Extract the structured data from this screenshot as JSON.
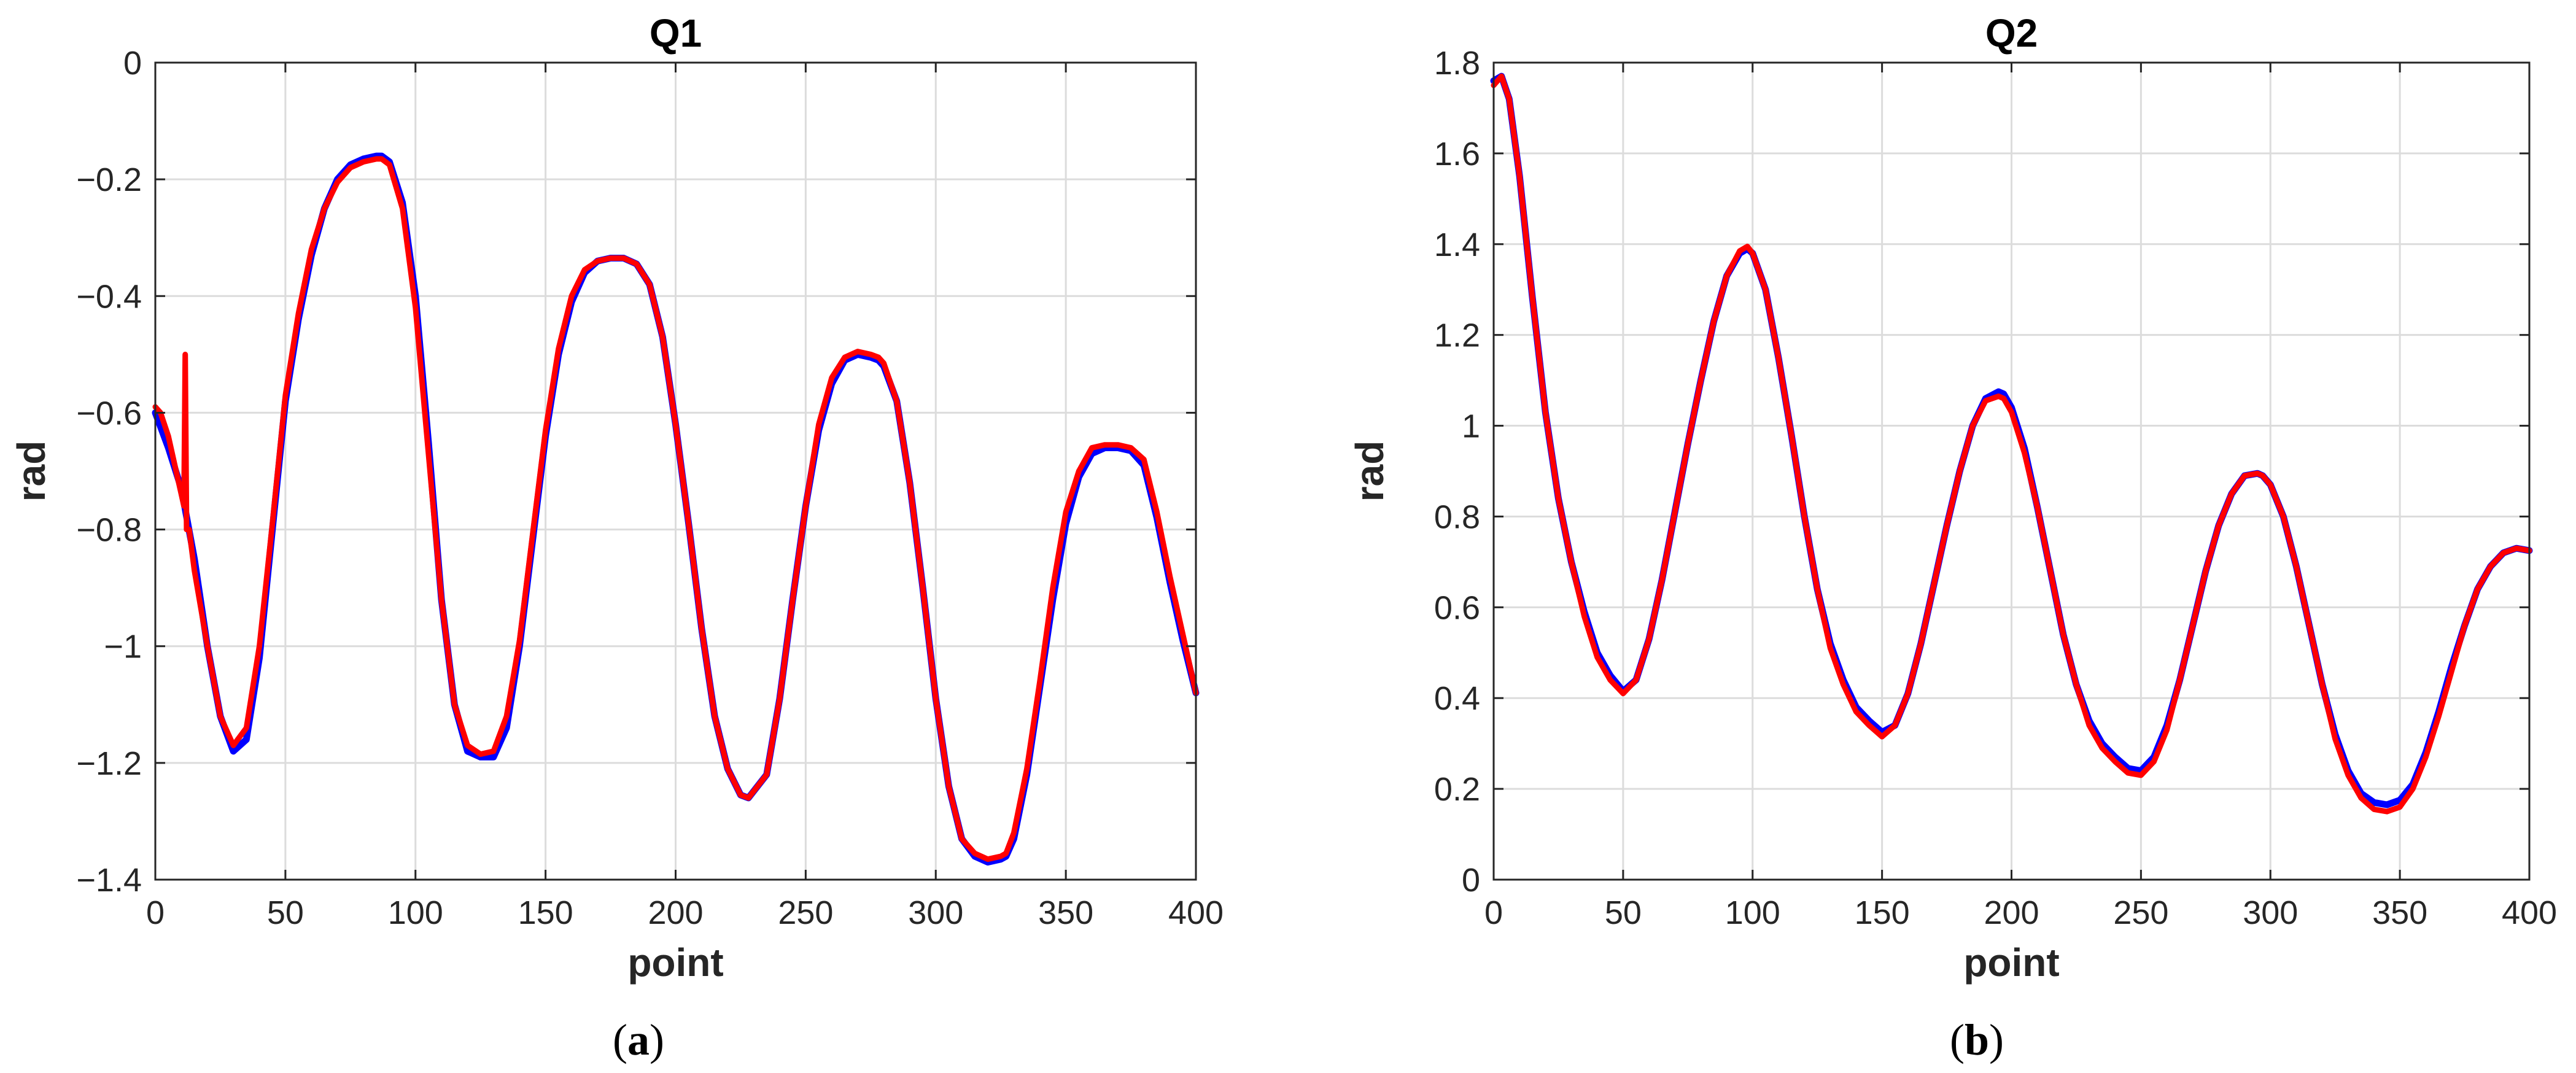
{
  "colors": {
    "reference": "#0000ff",
    "actual": "#ff0000",
    "grid": "#dcdcdc",
    "axis": "#262626"
  },
  "chart_data": [
    {
      "id": "a",
      "type": "line",
      "title": "Q1",
      "xlabel": "point",
      "ylabel": "rad",
      "xlim": [
        0,
        400
      ],
      "ylim": [
        -1.4,
        0
      ],
      "x_ticks": [
        0,
        50,
        100,
        150,
        200,
        250,
        300,
        350,
        400
      ],
      "x_tick_labels": [
        "0",
        "50",
        "100",
        "150",
        "200",
        "250",
        "300",
        "350",
        "400"
      ],
      "y_ticks": [
        -1.4,
        -1.2,
        -1,
        -0.8,
        -0.6,
        -0.4,
        -0.2,
        0
      ],
      "y_tick_labels": [
        "−1.4",
        "−1.2",
        "−1",
        "−0.8",
        "−0.6",
        "−0.4",
        "−0.2",
        "0"
      ],
      "grid": true,
      "series": [
        {
          "color": "#0000ff",
          "x": [
            0,
            5,
            10,
            15,
            20,
            25,
            30,
            35,
            40,
            45,
            50,
            55,
            60,
            65,
            70,
            75,
            80,
            85,
            87,
            90,
            95,
            100,
            105,
            110,
            115,
            120,
            125,
            130,
            135,
            140,
            145,
            150,
            155,
            160,
            165,
            170,
            175,
            180,
            185,
            190,
            195,
            200,
            205,
            210,
            215,
            220,
            225,
            228,
            235,
            240,
            245,
            250,
            255,
            260,
            265,
            270,
            275,
            278,
            280,
            285,
            290,
            295,
            300,
            305,
            310,
            315,
            320,
            325,
            327,
            330,
            335,
            340,
            345,
            350,
            355,
            360,
            365,
            370,
            375,
            380,
            385,
            390,
            395,
            400
          ],
          "y": [
            -0.6,
            -0.66,
            -0.73,
            -0.85,
            -1.0,
            -1.12,
            -1.18,
            -1.16,
            -1.02,
            -0.8,
            -0.58,
            -0.44,
            -0.33,
            -0.25,
            -0.2,
            -0.175,
            -0.165,
            -0.16,
            -0.16,
            -0.17,
            -0.24,
            -0.4,
            -0.65,
            -0.92,
            -1.1,
            -1.18,
            -1.19,
            -1.19,
            -1.14,
            -1.0,
            -0.82,
            -0.64,
            -0.5,
            -0.41,
            -0.36,
            -0.34,
            -0.335,
            -0.335,
            -0.345,
            -0.38,
            -0.47,
            -0.62,
            -0.79,
            -0.97,
            -1.12,
            -1.21,
            -1.255,
            -1.26,
            -1.22,
            -1.09,
            -0.92,
            -0.76,
            -0.63,
            -0.55,
            -0.51,
            -0.5,
            -0.505,
            -0.51,
            -0.52,
            -0.58,
            -0.72,
            -0.9,
            -1.09,
            -1.24,
            -1.33,
            -1.36,
            -1.37,
            -1.365,
            -1.36,
            -1.33,
            -1.22,
            -1.07,
            -0.92,
            -0.79,
            -0.71,
            -0.67,
            -0.66,
            -0.66,
            -0.665,
            -0.69,
            -0.78,
            -0.89,
            -0.99,
            -1.08
          ]
        },
        {
          "color": "#ff0000",
          "x": [
            0,
            2,
            5,
            8,
            10,
            11,
            11.5,
            12,
            13,
            15,
            20,
            25,
            30,
            35,
            40,
            45,
            50,
            55,
            60,
            65,
            70,
            75,
            80,
            85,
            87,
            90,
            95,
            100,
            105,
            110,
            115,
            120,
            125,
            130,
            135,
            140,
            145,
            150,
            155,
            160,
            165,
            170,
            175,
            180,
            185,
            190,
            195,
            200,
            205,
            210,
            215,
            220,
            225,
            228,
            235,
            240,
            245,
            250,
            255,
            260,
            265,
            270,
            275,
            278,
            280,
            285,
            290,
            295,
            300,
            305,
            310,
            315,
            320,
            325,
            327,
            330,
            335,
            340,
            345,
            350,
            355,
            360,
            365,
            370,
            375,
            380,
            385,
            390,
            395,
            400
          ],
          "y": [
            -0.59,
            -0.6,
            -0.64,
            -0.7,
            -0.74,
            -0.76,
            -0.5,
            -0.8,
            -0.8,
            -0.87,
            -1.0,
            -1.12,
            -1.17,
            -1.14,
            -1.0,
            -0.79,
            -0.57,
            -0.43,
            -0.32,
            -0.25,
            -0.205,
            -0.18,
            -0.17,
            -0.165,
            -0.165,
            -0.175,
            -0.25,
            -0.42,
            -0.67,
            -0.92,
            -1.1,
            -1.17,
            -1.185,
            -1.18,
            -1.12,
            -0.99,
            -0.81,
            -0.63,
            -0.49,
            -0.4,
            -0.355,
            -0.34,
            -0.335,
            -0.335,
            -0.345,
            -0.38,
            -0.47,
            -0.62,
            -0.79,
            -0.97,
            -1.12,
            -1.21,
            -1.255,
            -1.26,
            -1.22,
            -1.09,
            -0.92,
            -0.76,
            -0.62,
            -0.54,
            -0.505,
            -0.495,
            -0.5,
            -0.505,
            -0.515,
            -0.58,
            -0.72,
            -0.9,
            -1.09,
            -1.24,
            -1.33,
            -1.355,
            -1.365,
            -1.36,
            -1.355,
            -1.32,
            -1.21,
            -1.06,
            -0.9,
            -0.77,
            -0.7,
            -0.66,
            -0.655,
            -0.655,
            -0.66,
            -0.68,
            -0.77,
            -0.88,
            -0.98,
            -1.08
          ]
        }
      ]
    },
    {
      "id": "b",
      "type": "line",
      "title": "Q2",
      "xlabel": "point",
      "ylabel": "rad",
      "xlim": [
        0,
        400
      ],
      "ylim": [
        0,
        1.8
      ],
      "x_ticks": [
        0,
        50,
        100,
        150,
        200,
        250,
        300,
        350,
        400
      ],
      "x_tick_labels": [
        "0",
        "50",
        "100",
        "150",
        "200",
        "250",
        "300",
        "350",
        "400"
      ],
      "y_ticks": [
        0,
        0.2,
        0.4,
        0.6,
        0.8,
        1,
        1.2,
        1.4,
        1.6,
        1.8
      ],
      "y_tick_labels": [
        "0",
        "0.2",
        "0.4",
        "0.6",
        "0.8",
        "1",
        "1.2",
        "1.4",
        "1.6",
        "1.8"
      ],
      "grid": true,
      "series": [
        {
          "color": "#0000ff",
          "x": [
            0,
            3,
            6,
            10,
            15,
            20,
            25,
            30,
            35,
            40,
            45,
            50,
            55,
            60,
            65,
            70,
            75,
            80,
            85,
            90,
            95,
            98,
            100,
            105,
            110,
            115,
            120,
            125,
            130,
            135,
            140,
            145,
            150,
            155,
            160,
            165,
            170,
            175,
            180,
            185,
            190,
            195,
            197,
            200,
            205,
            210,
            215,
            220,
            225,
            230,
            235,
            240,
            245,
            250,
            255,
            260,
            265,
            270,
            275,
            280,
            285,
            290,
            295,
            297,
            300,
            305,
            310,
            315,
            320,
            325,
            330,
            335,
            340,
            345,
            350,
            355,
            360,
            365,
            370,
            375,
            380,
            385,
            390,
            395,
            400
          ],
          "y": [
            1.76,
            1.77,
            1.72,
            1.55,
            1.28,
            1.03,
            0.84,
            0.7,
            0.59,
            0.5,
            0.45,
            0.415,
            0.44,
            0.53,
            0.66,
            0.81,
            0.96,
            1.1,
            1.23,
            1.33,
            1.38,
            1.39,
            1.38,
            1.3,
            1.15,
            0.98,
            0.8,
            0.64,
            0.52,
            0.44,
            0.38,
            0.35,
            0.325,
            0.34,
            0.41,
            0.52,
            0.65,
            0.78,
            0.9,
            1.0,
            1.06,
            1.075,
            1.07,
            1.04,
            0.95,
            0.82,
            0.68,
            0.54,
            0.43,
            0.35,
            0.3,
            0.27,
            0.245,
            0.24,
            0.27,
            0.34,
            0.44,
            0.56,
            0.68,
            0.78,
            0.85,
            0.89,
            0.895,
            0.89,
            0.87,
            0.8,
            0.69,
            0.56,
            0.43,
            0.32,
            0.24,
            0.19,
            0.17,
            0.165,
            0.175,
            0.21,
            0.28,
            0.37,
            0.47,
            0.56,
            0.64,
            0.69,
            0.72,
            0.73,
            0.725
          ]
        },
        {
          "color": "#ff0000",
          "x": [
            0,
            3,
            6,
            10,
            15,
            20,
            25,
            30,
            35,
            40,
            45,
            50,
            55,
            60,
            65,
            70,
            75,
            80,
            85,
            90,
            95,
            98,
            100,
            105,
            110,
            115,
            120,
            125,
            130,
            135,
            140,
            145,
            150,
            155,
            160,
            165,
            170,
            175,
            180,
            185,
            190,
            195,
            197,
            200,
            205,
            210,
            215,
            220,
            225,
            230,
            235,
            240,
            245,
            250,
            255,
            260,
            265,
            270,
            275,
            280,
            285,
            290,
            295,
            297,
            300,
            305,
            310,
            315,
            320,
            325,
            330,
            335,
            340,
            345,
            350,
            355,
            360,
            365,
            370,
            375,
            380,
            385,
            390,
            395,
            400
          ],
          "y": [
            1.75,
            1.77,
            1.72,
            1.55,
            1.28,
            1.03,
            0.84,
            0.7,
            0.58,
            0.49,
            0.44,
            0.41,
            0.44,
            0.53,
            0.66,
            0.81,
            0.96,
            1.1,
            1.23,
            1.33,
            1.385,
            1.395,
            1.38,
            1.3,
            1.15,
            0.98,
            0.8,
            0.64,
            0.51,
            0.43,
            0.37,
            0.34,
            0.315,
            0.34,
            0.41,
            0.52,
            0.65,
            0.78,
            0.9,
            1.0,
            1.055,
            1.065,
            1.06,
            1.03,
            0.94,
            0.82,
            0.68,
            0.54,
            0.43,
            0.34,
            0.29,
            0.26,
            0.235,
            0.23,
            0.26,
            0.33,
            0.44,
            0.56,
            0.68,
            0.78,
            0.85,
            0.89,
            0.895,
            0.89,
            0.87,
            0.8,
            0.69,
            0.56,
            0.43,
            0.31,
            0.23,
            0.18,
            0.155,
            0.15,
            0.16,
            0.2,
            0.27,
            0.36,
            0.46,
            0.56,
            0.64,
            0.69,
            0.72,
            0.73,
            0.725
          ]
        }
      ]
    }
  ],
  "captions": [
    {
      "open": "(",
      "letter": "a",
      "close": ")"
    },
    {
      "open": "(",
      "letter": "b",
      "close": ")"
    }
  ]
}
